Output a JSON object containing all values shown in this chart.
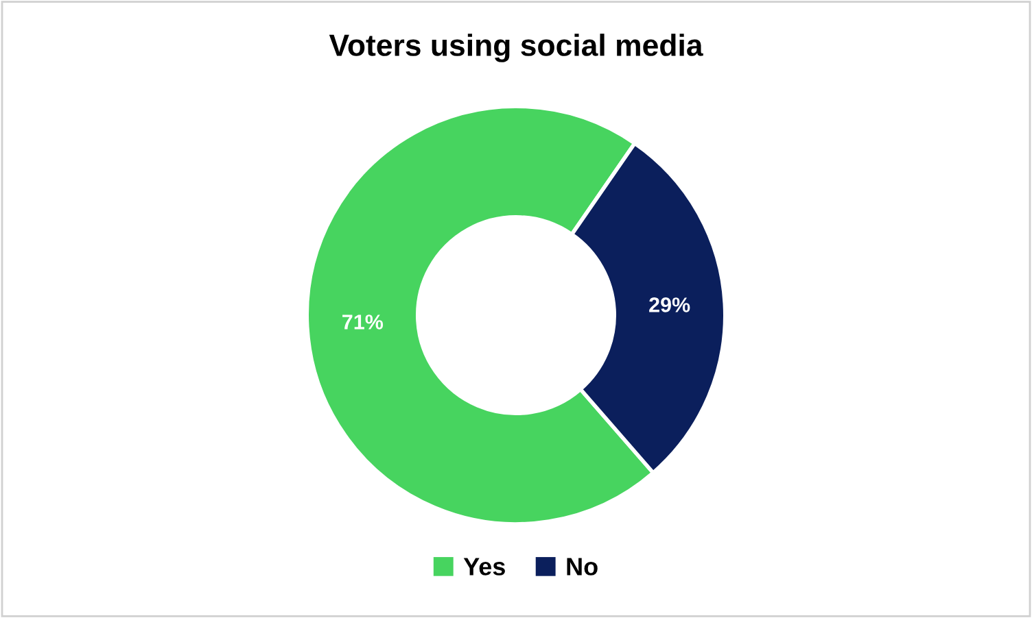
{
  "chart_data": {
    "type": "donut",
    "title": "Voters using social media",
    "categories": [
      "Yes",
      "No"
    ],
    "values": [
      71,
      29
    ],
    "colors": [
      "#47d45f",
      "#0b1f5c"
    ],
    "value_labels": [
      "71%",
      "29%"
    ],
    "legend": "bottom"
  }
}
